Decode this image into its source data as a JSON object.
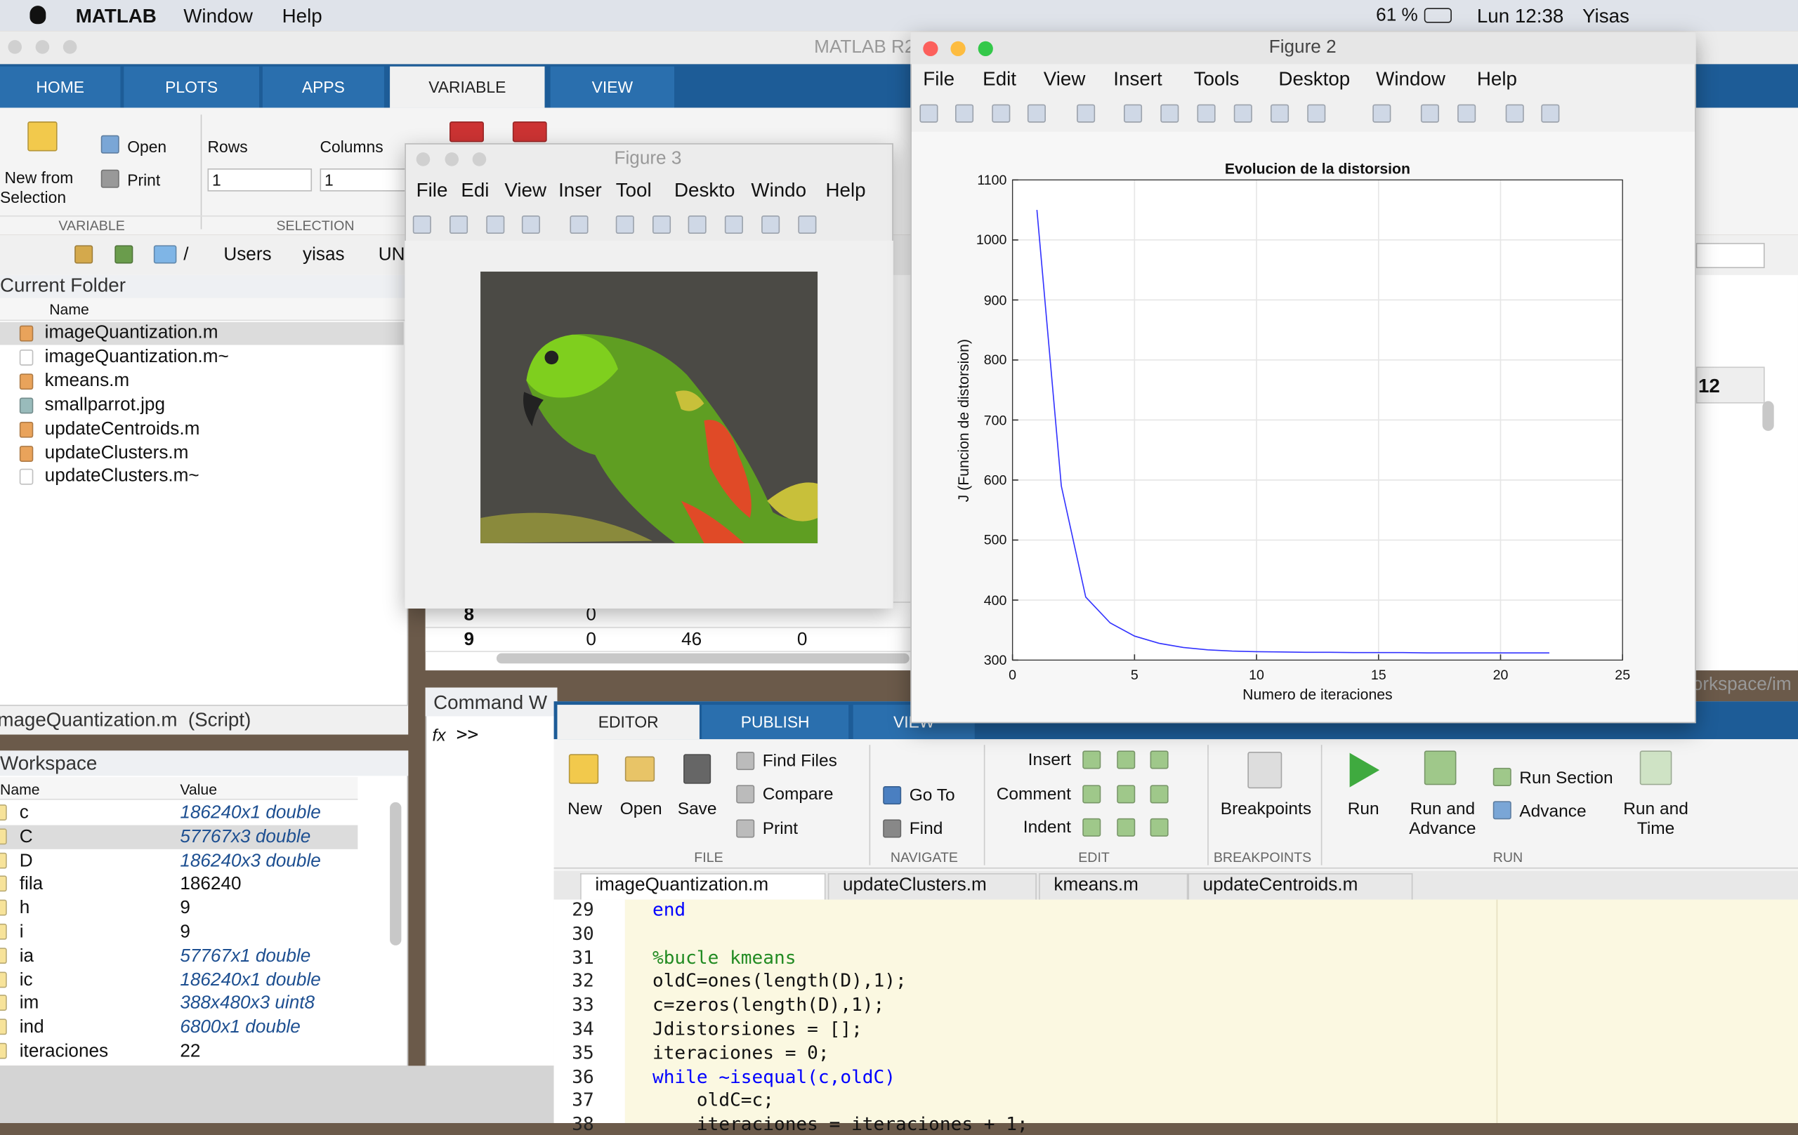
{
  "menubar": {
    "app": "MATLAB",
    "menus": [
      "Window",
      "Help"
    ],
    "battery": "61 %",
    "clock": "Lun 12:38",
    "user": "Yisas"
  },
  "matlab": {
    "title": "MATLAB R2",
    "tabs": [
      "HOME",
      "PLOTS",
      "APPS",
      "VARIABLE",
      "VIEW"
    ],
    "toolstrip": {
      "new_line1": "New from",
      "new_line2": "Selection",
      "open": "Open",
      "print": "Print",
      "rows": "Rows",
      "columns": "Columns",
      "rows_value": "1",
      "columns_value": "1",
      "sections": [
        "VARIABLE",
        "SELECTION"
      ]
    },
    "path": [
      "/",
      "Users",
      "yisas",
      "UN"
    ],
    "current_folder": {
      "title": "Current Folder",
      "column": "Name",
      "files": [
        "imageQuantization.m",
        "imageQuantization.m~",
        "kmeans.m",
        "smallparrot.jpg",
        "updateCentroids.m",
        "updateClusters.m",
        "updateClusters.m~"
      ]
    },
    "details": "imageQuantization.m  (Script)",
    "workspace": {
      "title": "Workspace",
      "columns": [
        "Name",
        "Value"
      ],
      "rows": [
        [
          "c",
          "186240x1 double"
        ],
        [
          "C",
          "57767x3 double"
        ],
        [
          "D",
          "186240x3 double"
        ],
        [
          "fila",
          "186240"
        ],
        [
          "h",
          "9"
        ],
        [
          "i",
          "9"
        ],
        [
          "ia",
          "57767x1 double"
        ],
        [
          "ic",
          "186240x1 double"
        ],
        [
          "im",
          "388x480x3 uint8"
        ],
        [
          "ind",
          "6800x1 double"
        ],
        [
          "iteraciones",
          "22"
        ]
      ]
    },
    "variable_editor": {
      "rows": [
        [
          "8",
          "0"
        ],
        [
          "9",
          "0",
          "46",
          "0"
        ]
      ],
      "fragment_right": "12",
      "path_fragment": "orkspace/im"
    },
    "command_window": {
      "title": "Command W",
      "fx": "fx",
      "prompt": ">>"
    }
  },
  "figure3": {
    "title": "Figure 3",
    "menus": [
      "File",
      "Edi",
      "View",
      "Inser",
      "Tool",
      "Deskto",
      "Windo",
      "Help"
    ]
  },
  "figure2": {
    "title": "Figure 2",
    "menus": [
      "File",
      "Edit",
      "View",
      "Insert",
      "Tools",
      "Desktop",
      "Window",
      "Help"
    ],
    "plot": {
      "type": "line",
      "title": "Evolucion de la distorsion",
      "xlabel": "Numero de iteraciones",
      "ylabel": "J (Funcion de distorsion)",
      "color": "#3333ff",
      "x": [
        1,
        2,
        3,
        4,
        5,
        6,
        7,
        8,
        9,
        10,
        11,
        12,
        13,
        14,
        15,
        16,
        17,
        18,
        19,
        20,
        21,
        22
      ],
      "y": [
        1050,
        590,
        405,
        362,
        340,
        328,
        321,
        317,
        315,
        314,
        313.5,
        313,
        313,
        312.5,
        312.5,
        312.5,
        312,
        312,
        312,
        312,
        312,
        312
      ],
      "xlim": [
        0,
        25
      ],
      "ylim": [
        300,
        1100
      ],
      "xticks": [
        0,
        5,
        10,
        15,
        20,
        25
      ],
      "yticks": [
        300,
        400,
        500,
        600,
        700,
        800,
        900,
        1000,
        1100
      ],
      "grid": true
    }
  },
  "editor": {
    "tabs": [
      "EDITOR",
      "PUBLISH",
      "VIEW"
    ],
    "toolstrip": {
      "new": "New",
      "open": "Open",
      "save": "Save",
      "find_files": "Find Files",
      "compare": "Compare",
      "print": "Print",
      "go_to": "Go To",
      "find": "Find",
      "insert": "Insert",
      "comment": "Comment",
      "indent": "Indent",
      "breakpoints": "Breakpoints",
      "run": "Run",
      "run_advance_1": "Run and",
      "run_advance_2": "Advance",
      "run_section": "Run Section",
      "advance": "Advance",
      "run_time_1": "Run and",
      "run_time_2": "Time",
      "sections": [
        "FILE",
        "NAVIGATE",
        "EDIT",
        "BREAKPOINTS",
        "RUN"
      ]
    },
    "files": [
      "imageQuantization.m",
      "updateClusters.m",
      "kmeans.m",
      "updateCentroids.m"
    ],
    "lines": [
      {
        "number": "29",
        "code": "end"
      },
      {
        "number": "30"
      },
      {
        "number": "31",
        "code": "%bucle kmeans"
      },
      {
        "number": "32",
        "code": "oldC=ones(length(D),1);"
      },
      {
        "number": "33",
        "code": "c=zeros(length(D),1);"
      },
      {
        "number": "34",
        "code": "Jdistorsiones = [];"
      },
      {
        "number": "35",
        "code": "iteraciones = 0;"
      },
      {
        "number": "36",
        "code": "while ~isequal(c,oldC)"
      },
      {
        "number": "37",
        "code": "    oldC=c;"
      },
      {
        "number": "38",
        "code": "    iteraciones = iteraciones + 1;"
      }
    ]
  }
}
